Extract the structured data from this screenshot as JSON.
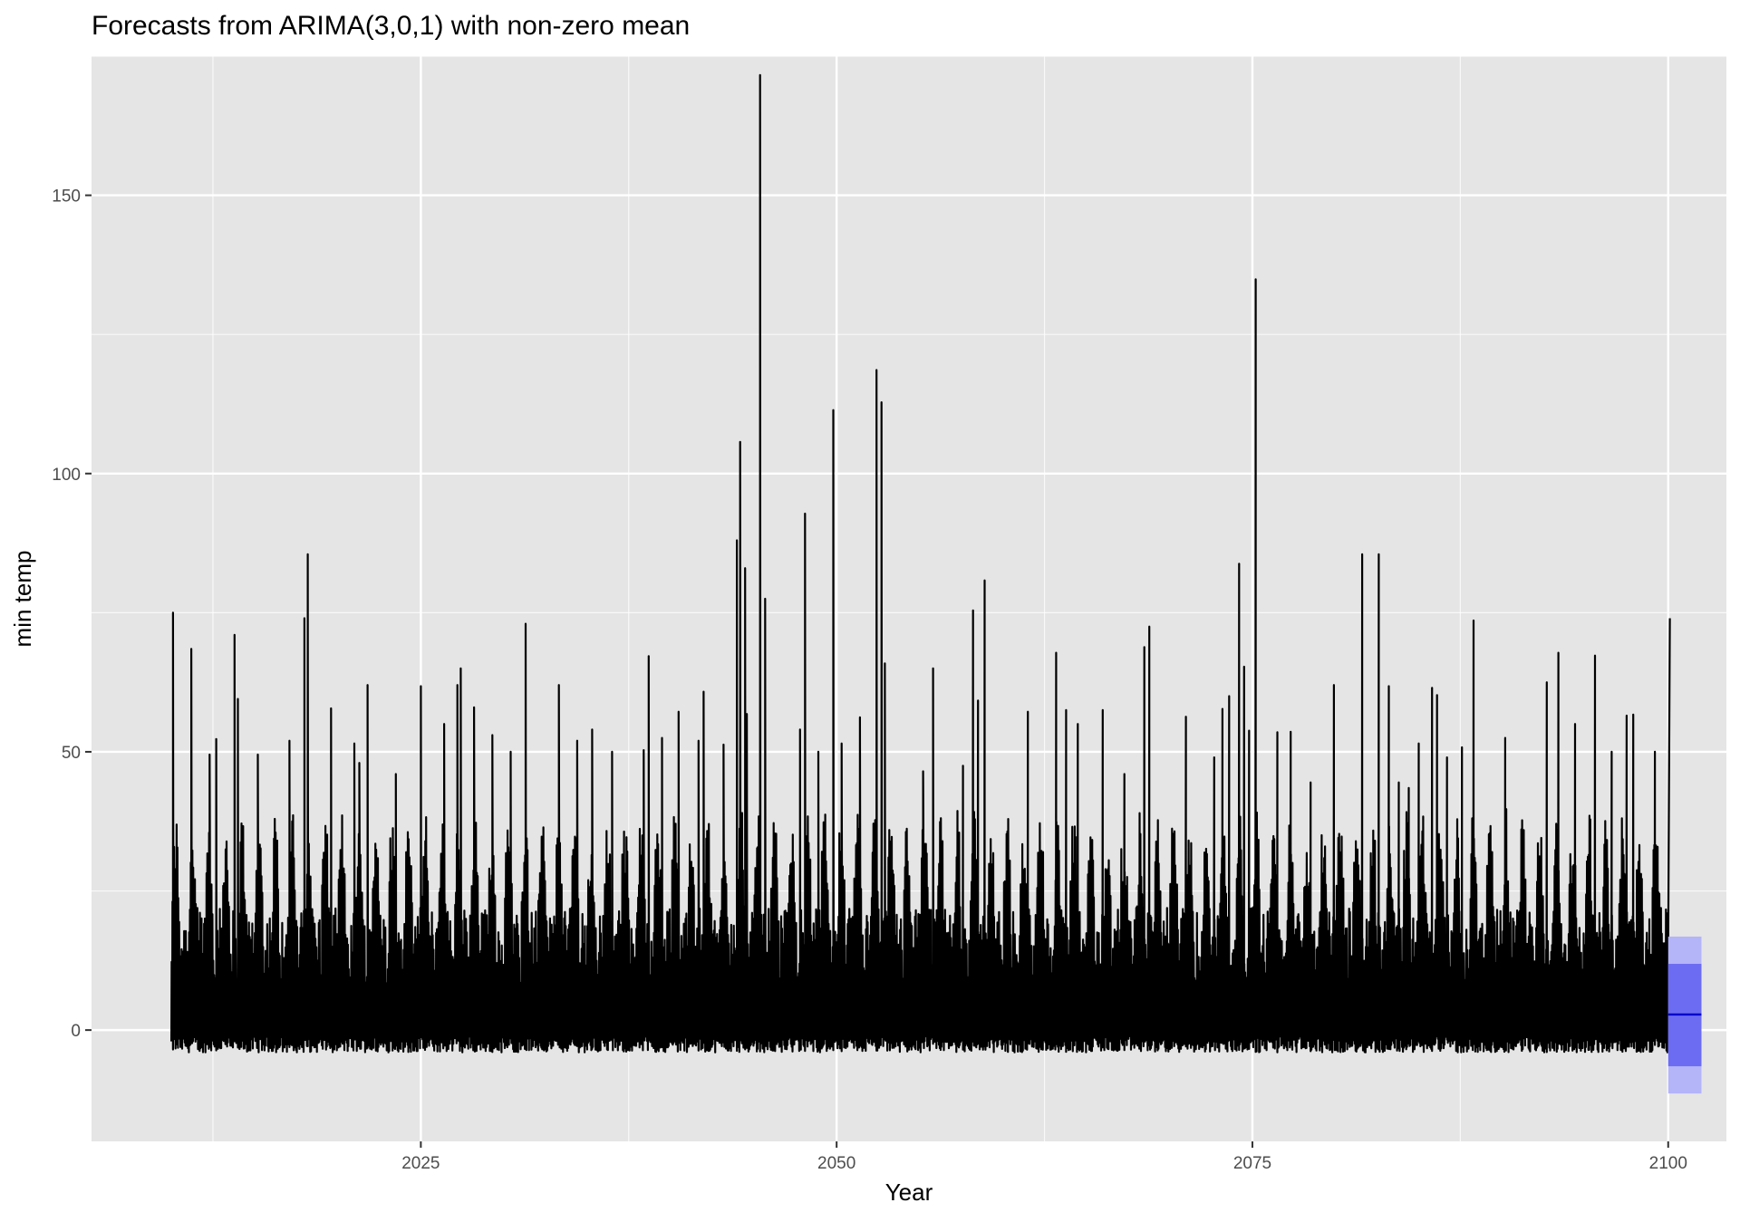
{
  "chart_data": {
    "type": "line",
    "title": "Forecasts from ARIMA(3,0,1) with non-zero mean",
    "xlabel": "Year",
    "ylabel": "min temp",
    "xlim": [
      2005.2,
      2103.5
    ],
    "ylim": [
      -20,
      175
    ],
    "x_ticks": [
      2025,
      2050,
      2075,
      2100
    ],
    "y_ticks": [
      0,
      50,
      100,
      150
    ],
    "x_tick_labels": [
      "2025",
      "2050",
      "2075",
      "2100"
    ],
    "y_tick_labels": [
      "0",
      "50",
      "100",
      "150"
    ],
    "grid": true,
    "legend": "none",
    "series": [
      {
        "role": "observed",
        "start_year": 2010.0,
        "end_year": 2100.0,
        "seasonal_min": -4,
        "typical_range": [
          -4,
          35
        ],
        "peaks": [
          [
            2010.1,
            75.0
          ],
          [
            2011.2,
            68.5
          ],
          [
            2012.3,
            49.5
          ],
          [
            2012.7,
            52.3
          ],
          [
            2013.8,
            71.0
          ],
          [
            2014.0,
            59.5
          ],
          [
            2015.2,
            49.5
          ],
          [
            2017.1,
            52.0
          ],
          [
            2018.0,
            74.0
          ],
          [
            2018.2,
            85.5
          ],
          [
            2019.6,
            57.8
          ],
          [
            2021.0,
            51.5
          ],
          [
            2021.3,
            48.0
          ],
          [
            2021.8,
            62.0
          ],
          [
            2023.5,
            46.0
          ],
          [
            2025.0,
            61.8
          ],
          [
            2026.4,
            55.0
          ],
          [
            2027.2,
            62.0
          ],
          [
            2027.4,
            65.0
          ],
          [
            2028.2,
            58.0
          ],
          [
            2029.3,
            53.0
          ],
          [
            2030.4,
            50.0
          ],
          [
            2031.3,
            73.0
          ],
          [
            2033.3,
            62.0
          ],
          [
            2034.4,
            52.0
          ],
          [
            2035.3,
            54.0
          ],
          [
            2036.5,
            50.0
          ],
          [
            2038.4,
            50.3
          ],
          [
            2038.7,
            67.2
          ],
          [
            2039.5,
            52.5
          ],
          [
            2040.5,
            57.2
          ],
          [
            2041.7,
            52.0
          ],
          [
            2042.0,
            60.8
          ],
          [
            2043.2,
            51.3
          ],
          [
            2044.0,
            88.0
          ],
          [
            2044.2,
            105.7
          ],
          [
            2044.5,
            83.0
          ],
          [
            2044.6,
            56.8
          ],
          [
            2045.4,
            171.6
          ],
          [
            2045.7,
            77.5
          ],
          [
            2047.8,
            54.0
          ],
          [
            2048.1,
            92.8
          ],
          [
            2048.9,
            50.0
          ],
          [
            2049.8,
            111.4
          ],
          [
            2050.3,
            51.5
          ],
          [
            2051.4,
            56.2
          ],
          [
            2052.4,
            118.6
          ],
          [
            2052.7,
            112.8
          ],
          [
            2052.9,
            65.9
          ],
          [
            2055.2,
            46.5
          ],
          [
            2055.8,
            65.0
          ],
          [
            2057.6,
            47.5
          ],
          [
            2058.2,
            75.4
          ],
          [
            2058.5,
            59.2
          ],
          [
            2058.9,
            80.8
          ],
          [
            2061.5,
            57.2
          ],
          [
            2063.2,
            67.8
          ],
          [
            2063.8,
            57.5
          ],
          [
            2064.5,
            55.0
          ],
          [
            2066.0,
            57.5
          ],
          [
            2067.3,
            46.0
          ],
          [
            2068.5,
            68.8
          ],
          [
            2068.8,
            72.5
          ],
          [
            2071.0,
            56.3
          ],
          [
            2072.7,
            49.0
          ],
          [
            2073.2,
            57.7
          ],
          [
            2073.6,
            60.0
          ],
          [
            2074.2,
            83.8
          ],
          [
            2074.5,
            65.3
          ],
          [
            2074.8,
            53.8
          ],
          [
            2075.2,
            134.9
          ],
          [
            2076.5,
            53.5
          ],
          [
            2077.3,
            53.6
          ],
          [
            2078.5,
            44.5
          ],
          [
            2079.9,
            62.0
          ],
          [
            2081.6,
            85.5
          ],
          [
            2082.6,
            85.5
          ],
          [
            2083.2,
            61.8
          ],
          [
            2083.8,
            44.5
          ],
          [
            2084.4,
            43.5
          ],
          [
            2085.0,
            51.5
          ],
          [
            2085.8,
            61.5
          ],
          [
            2086.1,
            60.2
          ],
          [
            2086.7,
            49.0
          ],
          [
            2087.6,
            50.8
          ],
          [
            2088.3,
            73.6
          ],
          [
            2090.2,
            52.5
          ],
          [
            2092.7,
            62.5
          ],
          [
            2093.4,
            67.8
          ],
          [
            2094.4,
            55.0
          ],
          [
            2095.6,
            67.3
          ],
          [
            2096.6,
            50.0
          ],
          [
            2097.5,
            56.5
          ],
          [
            2097.9,
            56.7
          ],
          [
            2099.2,
            50.0
          ],
          [
            2100.1,
            74.0
          ]
        ]
      },
      {
        "role": "forecast",
        "x_start": 2100.0,
        "x_end": 2102.0,
        "mean": 2.8,
        "pi80": [
          -6.5,
          11.9
        ],
        "pi95": [
          -11.4,
          16.8
        ],
        "color": "#0000cc",
        "pi80_color": "#6c6cf2",
        "pi95_color": "#b4b4f8"
      }
    ]
  },
  "colors": {
    "panel": "#e5e5e5",
    "grid_major": "#ffffff",
    "line": "#000000",
    "text": "#000000",
    "tick_text": "#4d4d4d"
  }
}
